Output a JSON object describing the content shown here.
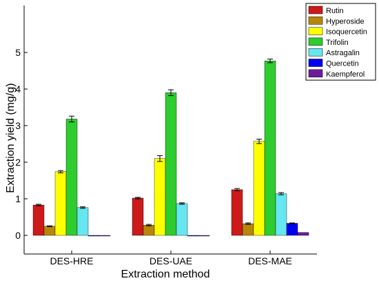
{
  "chart_data": {
    "type": "bar",
    "xlabel": "Extraction method",
    "ylabel": "Extraction yield (mg/g)",
    "categories": [
      "DES-HRE",
      "DES-UAE",
      "DES-MAE"
    ],
    "ylim": [
      -0.5,
      5.3
    ],
    "yticks": [
      0,
      1,
      2,
      3,
      4,
      5
    ],
    "legend_position": "top-right",
    "grid": false,
    "series": [
      {
        "name": "Rutin",
        "color": "#cc1a1a",
        "values": [
          0.83,
          1.02,
          1.25
        ],
        "errors": [
          0.02,
          0.02,
          0.03
        ]
      },
      {
        "name": "Hyperoside",
        "color": "#b8860b",
        "values": [
          0.25,
          0.28,
          0.32
        ],
        "errors": [
          0.01,
          0.02,
          0.02
        ]
      },
      {
        "name": "Isoquercetin",
        "color": "#ffff00",
        "values": [
          1.74,
          2.1,
          2.57
        ],
        "errors": [
          0.03,
          0.08,
          0.06
        ]
      },
      {
        "name": "Trifolin",
        "color": "#2ecc2e",
        "values": [
          3.18,
          3.9,
          4.77
        ],
        "errors": [
          0.08,
          0.08,
          0.05
        ]
      },
      {
        "name": "Astragalin",
        "color": "#66e6f0",
        "values": [
          0.76,
          0.87,
          1.14
        ],
        "errors": [
          0.02,
          0.02,
          0.03
        ]
      },
      {
        "name": "Quercetin",
        "color": "#0000ee",
        "values": [
          0.0,
          0.0,
          0.33
        ],
        "errors": [
          0.0,
          0.0,
          0.01
        ]
      },
      {
        "name": "Kaempferol",
        "color": "#6a1b9a",
        "values": [
          0.0,
          0.0,
          0.08
        ],
        "errors": [
          0.0,
          0.0,
          0.0
        ]
      }
    ]
  }
}
